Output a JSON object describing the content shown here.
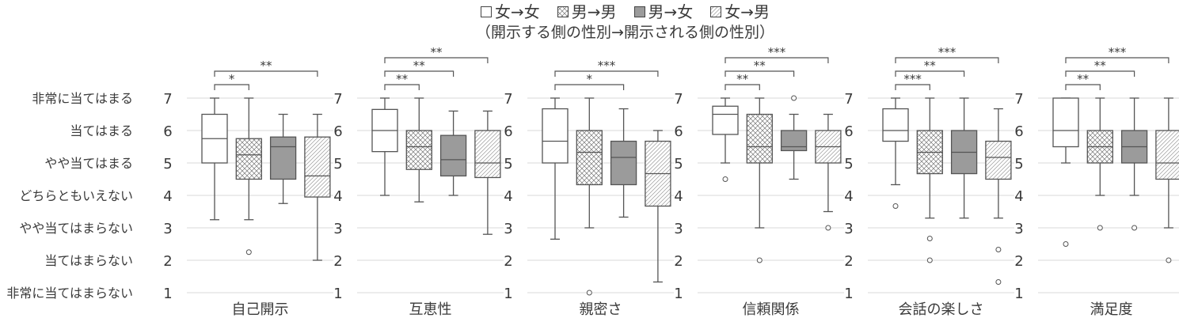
{
  "legend": {
    "items": [
      {
        "label": "女→女",
        "fill": "white"
      },
      {
        "label": "男→男",
        "fill": "crosshatch"
      },
      {
        "label": "男→女",
        "fill": "gray"
      },
      {
        "label": "女→男",
        "fill": "diagonal"
      }
    ],
    "subtitle": "（開示する側の性別→開示される側の性別）"
  },
  "colors": {
    "gray_fill": "#9b9b9b",
    "stroke": "#555555",
    "grid": "#d9d9d9",
    "text": "#3a3a3a"
  },
  "chart_data": {
    "type": "box",
    "y_tick_labels": [
      "非常に当てはまらない",
      "当てはまらない",
      "やや当てはまらない",
      "どちらともいえない",
      "やや当てはまる",
      "当てはまる",
      "非常に当てはまる"
    ],
    "ylim": [
      1,
      7
    ],
    "series": [
      "女→女",
      "男→男",
      "男→女",
      "女→男"
    ],
    "panels": [
      {
        "title": "自己開示",
        "boxes": [
          {
            "series": "女→女",
            "min": 3.25,
            "q1": 5.0,
            "median": 5.75,
            "q3": 6.5,
            "max": 7.0,
            "outliers": []
          },
          {
            "series": "男→男",
            "min": 3.25,
            "q1": 4.5,
            "median": 5.25,
            "q3": 5.75,
            "max": 7.0,
            "outliers": [
              2.25
            ]
          },
          {
            "series": "男→女",
            "min": 3.75,
            "q1": 4.5,
            "median": 5.5,
            "q3": 5.8,
            "max": 6.5,
            "outliers": []
          },
          {
            "series": "女→男",
            "min": 2.0,
            "q1": 3.95,
            "median": 4.6,
            "q3": 5.8,
            "max": 6.5,
            "outliers": []
          }
        ],
        "brackets": [
          {
            "from": 0,
            "to": 1,
            "label": "*"
          },
          {
            "from": 0,
            "to": 3,
            "label": "**"
          }
        ]
      },
      {
        "title": "互恵性",
        "boxes": [
          {
            "series": "女→女",
            "min": 4.0,
            "q1": 5.35,
            "median": 6.0,
            "q3": 6.65,
            "max": 7.0,
            "outliers": []
          },
          {
            "series": "男→男",
            "min": 3.8,
            "q1": 4.8,
            "median": 5.5,
            "q3": 6.0,
            "max": 7.0,
            "outliers": []
          },
          {
            "series": "男→女",
            "min": 4.0,
            "q1": 4.6,
            "median": 5.1,
            "q3": 5.85,
            "max": 6.6,
            "outliers": []
          },
          {
            "series": "女→男",
            "min": 2.8,
            "q1": 4.55,
            "median": 5.0,
            "q3": 6.0,
            "max": 6.6,
            "outliers": []
          }
        ],
        "brackets": [
          {
            "from": 0,
            "to": 1,
            "label": "**"
          },
          {
            "from": 0,
            "to": 2,
            "label": "**"
          },
          {
            "from": 0,
            "to": 3,
            "label": "**"
          }
        ]
      },
      {
        "title": "親密さ",
        "boxes": [
          {
            "series": "女→女",
            "min": 2.65,
            "q1": 5.0,
            "median": 5.67,
            "q3": 6.67,
            "max": 7.0,
            "outliers": []
          },
          {
            "series": "男→男",
            "min": 3.0,
            "q1": 4.33,
            "median": 5.33,
            "q3": 6.0,
            "max": 7.0,
            "outliers": [
              1.0
            ]
          },
          {
            "series": "男→女",
            "min": 3.33,
            "q1": 4.33,
            "median": 5.17,
            "q3": 5.67,
            "max": 6.67,
            "outliers": []
          },
          {
            "series": "女→男",
            "min": 1.33,
            "q1": 3.67,
            "median": 4.67,
            "q3": 5.67,
            "max": 6.0,
            "outliers": []
          }
        ],
        "brackets": [
          {
            "from": 0,
            "to": 2,
            "label": "*"
          },
          {
            "from": 0,
            "to": 3,
            "label": "***"
          }
        ]
      },
      {
        "title": "信頼関係",
        "boxes": [
          {
            "series": "女→女",
            "min": 5.0,
            "q1": 5.88,
            "median": 6.5,
            "q3": 6.75,
            "max": 7.0,
            "outliers": [
              4.5
            ]
          },
          {
            "series": "男→男",
            "min": 3.0,
            "q1": 5.0,
            "median": 5.5,
            "q3": 6.5,
            "max": 7.0,
            "outliers": [
              2.0
            ]
          },
          {
            "series": "男→女",
            "min": 4.5,
            "q1": 5.38,
            "median": 5.5,
            "q3": 6.0,
            "max": 6.5,
            "outliers": [
              7.0
            ]
          },
          {
            "series": "女→男",
            "min": 3.5,
            "q1": 5.0,
            "median": 5.5,
            "q3": 6.0,
            "max": 6.5,
            "outliers": [
              3.0
            ]
          }
        ],
        "brackets": [
          {
            "from": 0,
            "to": 1,
            "label": "**"
          },
          {
            "from": 0,
            "to": 2,
            "label": "**"
          },
          {
            "from": 0,
            "to": 3,
            "label": "***"
          }
        ]
      },
      {
        "title": "会話の楽しさ",
        "boxes": [
          {
            "series": "女→女",
            "min": 4.33,
            "q1": 5.67,
            "median": 6.0,
            "q3": 6.67,
            "max": 7.0,
            "outliers": [
              3.67
            ]
          },
          {
            "series": "男→男",
            "min": 3.3,
            "q1": 4.67,
            "median": 5.33,
            "q3": 6.0,
            "max": 7.0,
            "outliers": [
              2.67,
              2.0
            ]
          },
          {
            "series": "男→女",
            "min": 3.3,
            "q1": 4.67,
            "median": 5.33,
            "q3": 6.0,
            "max": 7.0,
            "outliers": []
          },
          {
            "series": "女→男",
            "min": 3.3,
            "q1": 4.5,
            "median": 5.17,
            "q3": 5.67,
            "max": 6.67,
            "outliers": [
              2.33,
              1.33
            ]
          }
        ],
        "brackets": [
          {
            "from": 0,
            "to": 1,
            "label": "***"
          },
          {
            "from": 0,
            "to": 2,
            "label": "**"
          },
          {
            "from": 0,
            "to": 3,
            "label": "***"
          }
        ]
      },
      {
        "title": "満足度",
        "boxes": [
          {
            "series": "女→女",
            "min": 5.0,
            "q1": 5.5,
            "median": 6.0,
            "q3": 7.0,
            "max": 7.0,
            "outliers": [
              2.5
            ]
          },
          {
            "series": "男→男",
            "min": 4.0,
            "q1": 5.0,
            "median": 5.5,
            "q3": 6.0,
            "max": 7.0,
            "outliers": [
              3.0
            ]
          },
          {
            "series": "男→女",
            "min": 4.0,
            "q1": 5.0,
            "median": 5.5,
            "q3": 6.0,
            "max": 7.0,
            "outliers": [
              3.0
            ]
          },
          {
            "series": "女→男",
            "min": 3.0,
            "q1": 4.5,
            "median": 5.0,
            "q3": 6.0,
            "max": 7.0,
            "outliers": [
              2.0
            ]
          }
        ],
        "brackets": [
          {
            "from": 0,
            "to": 1,
            "label": "**"
          },
          {
            "from": 0,
            "to": 2,
            "label": "**"
          },
          {
            "from": 0,
            "to": 3,
            "label": "***"
          }
        ]
      }
    ]
  }
}
